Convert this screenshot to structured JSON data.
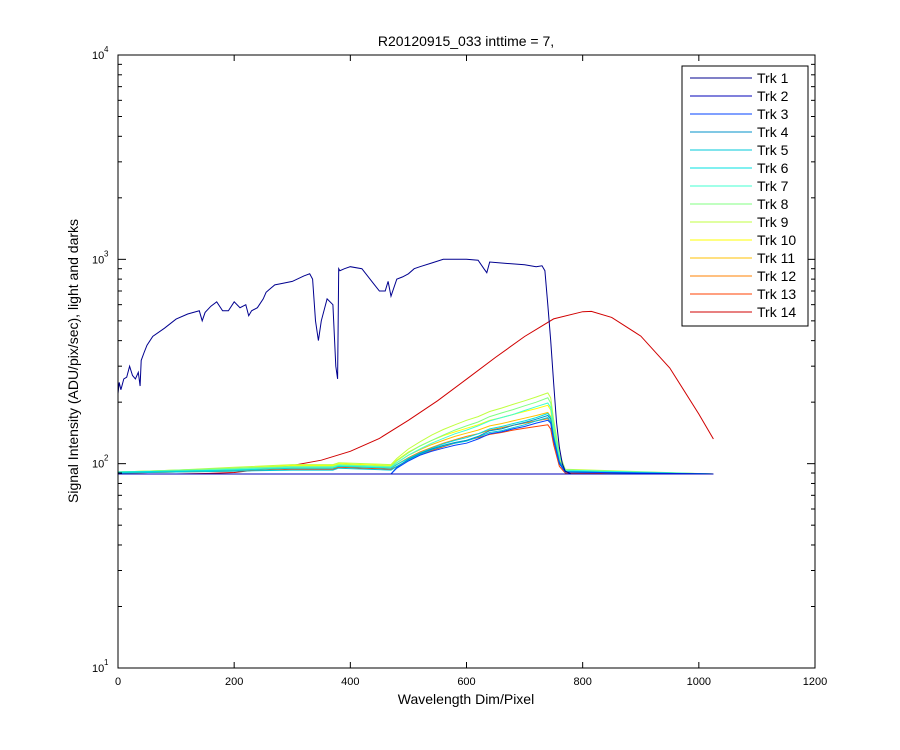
{
  "chart_data": {
    "type": "line",
    "title": "R20120915_033 inttime = 7,",
    "xlabel": "Wavelength Dim/Pixel",
    "ylabel": "Signal Intensity (ADU/pix/sec), light and darks",
    "xlim": [
      0,
      1200
    ],
    "ylim": [
      10,
      10000
    ],
    "yscale": "log",
    "xticks": [
      0,
      200,
      400,
      600,
      800,
      1000,
      1200
    ],
    "yticks": [
      {
        "value": 10,
        "base": "10",
        "exp": "1"
      },
      {
        "value": 100,
        "base": "10",
        "exp": "2"
      },
      {
        "value": 1000,
        "base": "10",
        "exp": "3"
      },
      {
        "value": 10000,
        "base": "10",
        "exp": "4"
      }
    ],
    "grid": false,
    "legend_position": "top-right",
    "series": [
      {
        "name": "Trk 1",
        "color": "#00008f",
        "x": [
          0,
          2,
          5,
          10,
          15,
          20,
          25,
          30,
          35,
          38,
          40,
          45,
          50,
          60,
          80,
          100,
          120,
          140,
          145,
          150,
          160,
          170,
          180,
          190,
          200,
          210,
          220,
          225,
          230,
          240,
          250,
          255,
          260,
          270,
          280,
          300,
          320,
          330,
          335,
          340,
          345,
          350,
          360,
          370,
          375,
          378,
          380,
          382,
          390,
          400,
          420,
          440,
          450,
          460,
          465,
          470,
          480,
          490,
          500,
          510,
          520,
          540,
          560,
          580,
          600,
          620,
          630,
          635,
          640,
          660,
          680,
          700,
          720,
          730,
          735,
          740,
          745,
          750,
          755,
          760,
          765,
          770,
          780
        ],
        "y": [
          220,
          250,
          230,
          260,
          265,
          300,
          270,
          260,
          280,
          240,
          320,
          350,
          380,
          420,
          460,
          510,
          540,
          560,
          500,
          550,
          590,
          620,
          560,
          560,
          620,
          580,
          600,
          530,
          560,
          580,
          640,
          690,
          710,
          750,
          760,
          780,
          830,
          850,
          800,
          500,
          400,
          500,
          640,
          600,
          300,
          260,
          900,
          880,
          900,
          920,
          900,
          760,
          700,
          700,
          780,
          660,
          800,
          820,
          850,
          900,
          920,
          960,
          1000,
          1000,
          1000,
          990,
          900,
          860,
          970,
          960,
          950,
          940,
          920,
          930,
          880,
          600,
          400,
          250,
          160,
          120,
          100,
          92,
          89
        ]
      },
      {
        "name": "Trk 2",
        "color": "#0000b8",
        "x": [
          0,
          1025
        ],
        "y": [
          89,
          89
        ]
      },
      {
        "name": "Trk 3",
        "color": "#0040ff",
        "x": [
          0,
          470,
          480,
          500,
          520,
          540,
          560,
          580,
          600,
          620,
          640,
          660,
          680,
          700,
          720,
          740,
          745,
          750,
          760,
          770,
          1025
        ],
        "y": [
          89,
          89,
          95,
          103,
          110,
          115,
          119,
          123,
          126,
          132,
          140,
          143,
          148,
          152,
          158,
          163,
          158,
          130,
          100,
          91,
          89
        ]
      },
      {
        "name": "Trk 4",
        "color": "#0090c8",
        "x": [
          0,
          470,
          480,
          500,
          520,
          540,
          560,
          580,
          600,
          620,
          640,
          660,
          680,
          700,
          720,
          740,
          745,
          750,
          760,
          770,
          1025
        ],
        "y": [
          89,
          89,
          96,
          105,
          112,
          118,
          123,
          127,
          130,
          136,
          145,
          148,
          154,
          159,
          165,
          172,
          165,
          135,
          102,
          91,
          89
        ]
      },
      {
        "name": "Trk 5",
        "color": "#00c8d8",
        "x": [
          0,
          100,
          200,
          300,
          370,
          380,
          470,
          480,
          500,
          520,
          540,
          560,
          580,
          600,
          620,
          640,
          660,
          680,
          700,
          720,
          740,
          745,
          750,
          760,
          770,
          1025
        ],
        "y": [
          90,
          91,
          92,
          93,
          93,
          95,
          93,
          97,
          104,
          111,
          117,
          122,
          126,
          129,
          135,
          142,
          145,
          150,
          155,
          162,
          168,
          160,
          132,
          100,
          91,
          89
        ]
      },
      {
        "name": "Trk 6",
        "color": "#00e0e0",
        "x": [
          0,
          100,
          200,
          300,
          370,
          380,
          470,
          480,
          500,
          520,
          540,
          560,
          580,
          600,
          620,
          640,
          660,
          680,
          700,
          720,
          740,
          745,
          750,
          760,
          770,
          1025
        ],
        "y": [
          91,
          92,
          93,
          95,
          95,
          97,
          95,
          99,
          106,
          113,
          119,
          125,
          130,
          134,
          140,
          148,
          152,
          157,
          162,
          168,
          176,
          168,
          138,
          103,
          92,
          89
        ]
      },
      {
        "name": "Trk 7",
        "color": "#40ffd0",
        "x": [
          0,
          100,
          200,
          300,
          370,
          380,
          470,
          480,
          500,
          520,
          540,
          560,
          580,
          600,
          620,
          640,
          660,
          680,
          700,
          720,
          740,
          745,
          750,
          760,
          770,
          1025
        ],
        "y": [
          91,
          92,
          94,
          96,
          96,
          98,
          96,
          101,
          110,
          118,
          126,
          133,
          140,
          146,
          153,
          162,
          168,
          174,
          182,
          190,
          198,
          188,
          150,
          108,
          93,
          89
        ]
      },
      {
        "name": "Trk 8",
        "color": "#80ff80",
        "x": [
          0,
          100,
          200,
          300,
          370,
          380,
          470,
          480,
          500,
          520,
          540,
          560,
          580,
          600,
          620,
          640,
          660,
          680,
          700,
          720,
          740,
          745,
          750,
          760,
          770,
          1025
        ],
        "y": [
          91,
          93,
          95,
          97,
          97,
          99,
          97,
          103,
          113,
          122,
          130,
          138,
          146,
          153,
          160,
          170,
          177,
          184,
          192,
          200,
          210,
          198,
          158,
          110,
          93,
          89
        ]
      },
      {
        "name": "Trk 9",
        "color": "#c0ff40",
        "x": [
          0,
          100,
          200,
          300,
          370,
          380,
          470,
          480,
          500,
          520,
          540,
          560,
          580,
          600,
          620,
          640,
          660,
          680,
          700,
          720,
          740,
          745,
          750,
          760,
          770,
          1025
        ],
        "y": [
          91,
          93,
          96,
          99,
          99,
          101,
          99,
          106,
          118,
          128,
          138,
          147,
          155,
          163,
          170,
          180,
          187,
          195,
          203,
          212,
          222,
          210,
          165,
          112,
          94,
          89
        ]
      },
      {
        "name": "Trk 10",
        "color": "#ffff00",
        "x": [
          0,
          100,
          200,
          300,
          370,
          380,
          470,
          480,
          500,
          520,
          540,
          560,
          580,
          600,
          620,
          640,
          660,
          680,
          700,
          720,
          740,
          745,
          750,
          760,
          770,
          1025
        ],
        "y": [
          91,
          93,
          95,
          98,
          98,
          100,
          98,
          104,
          114,
          122,
          130,
          137,
          143,
          149,
          155,
          163,
          168,
          174,
          180,
          186,
          193,
          183,
          145,
          105,
          92,
          89
        ]
      },
      {
        "name": "Trk 11",
        "color": "#ffc000",
        "x": [
          0,
          100,
          200,
          300,
          370,
          380,
          470,
          480,
          500,
          520,
          540,
          560,
          580,
          600,
          620,
          640,
          660,
          680,
          700,
          720,
          740,
          745,
          750,
          760,
          770,
          1025
        ],
        "y": [
          91,
          92,
          94,
          96,
          96,
          98,
          96,
          101,
          110,
          117,
          124,
          130,
          136,
          141,
          146,
          153,
          157,
          162,
          167,
          172,
          178,
          170,
          138,
          102,
          91,
          89
        ]
      },
      {
        "name": "Trk 12",
        "color": "#ff8000",
        "x": [
          0,
          100,
          200,
          300,
          370,
          380,
          470,
          480,
          500,
          520,
          540,
          560,
          580,
          600,
          620,
          640,
          660,
          680,
          700,
          720,
          740,
          745,
          750,
          760,
          770,
          1025
        ],
        "y": [
          90,
          91,
          93,
          95,
          95,
          97,
          95,
          99,
          107,
          114,
          120,
          126,
          131,
          136,
          140,
          146,
          150,
          154,
          158,
          162,
          166,
          158,
          130,
          100,
          91,
          89
        ]
      },
      {
        "name": "Trk 13",
        "color": "#ff4000",
        "x": [
          0,
          100,
          200,
          300,
          370,
          380,
          470,
          480,
          500,
          520,
          540,
          560,
          580,
          600,
          620,
          640,
          660,
          680,
          700,
          720,
          740,
          745,
          750,
          760,
          770,
          1025
        ],
        "y": [
          90,
          91,
          92,
          94,
          94,
          96,
          94,
          97,
          104,
          110,
          116,
          121,
          126,
          130,
          134,
          139,
          142,
          146,
          149,
          152,
          155,
          148,
          124,
          97,
          90,
          89
        ]
      },
      {
        "name": "Trk 14",
        "color": "#d00000",
        "x": [
          0,
          50,
          100,
          150,
          200,
          250,
          300,
          350,
          400,
          450,
          500,
          550,
          600,
          650,
          700,
          750,
          800,
          815,
          850,
          900,
          950,
          1000,
          1025
        ],
        "y": [
          89,
          89,
          89,
          89.5,
          90.5,
          94,
          98,
          104,
          115,
          133,
          163,
          203,
          259,
          331,
          419,
          511,
          554,
          556,
          520,
          421,
          294,
          175,
          132
        ]
      }
    ]
  }
}
